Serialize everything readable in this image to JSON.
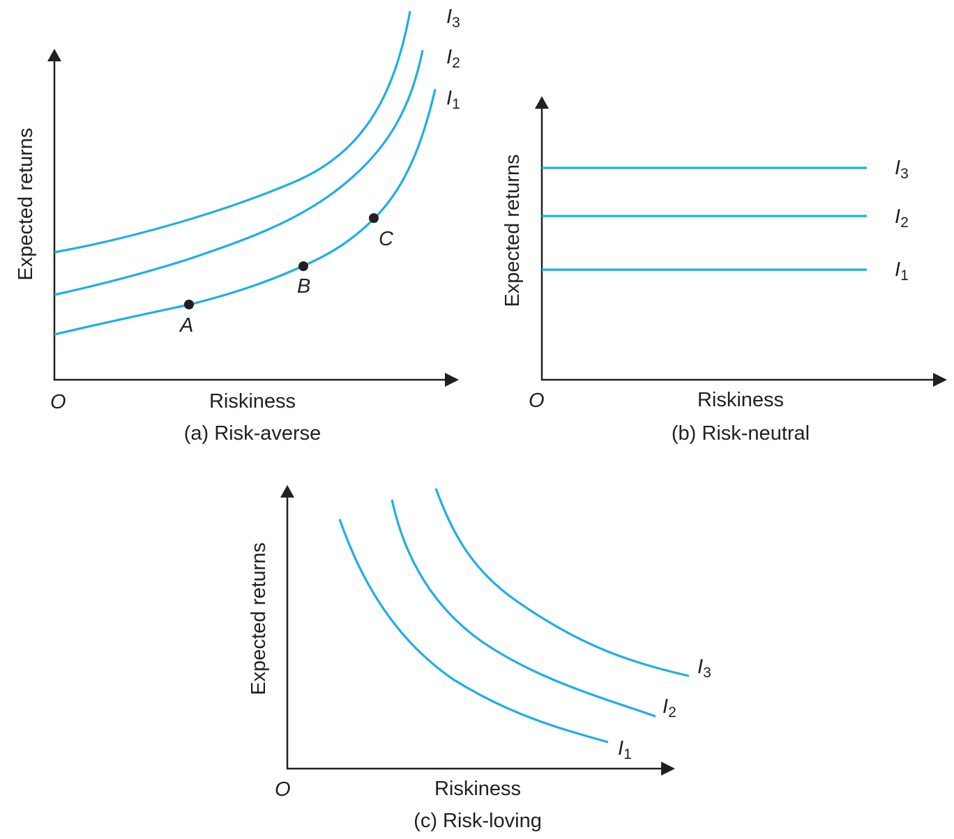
{
  "colors": {
    "curve": "#1eaee6",
    "axis": "#231f20",
    "background": "#ffffff"
  },
  "panel_a": {
    "caption": "(a) Risk-averse",
    "x_label": "Riskiness",
    "y_label": "Expected returns",
    "origin": "O",
    "curves": [
      {
        "letter": "I",
        "sub": "3"
      },
      {
        "letter": "I",
        "sub": "2"
      },
      {
        "letter": "I",
        "sub": "1"
      }
    ],
    "points": [
      {
        "label": "A"
      },
      {
        "label": "B"
      },
      {
        "label": "C"
      }
    ]
  },
  "panel_b": {
    "caption": "(b) Risk-neutral",
    "x_label": "Riskiness",
    "y_label": "Expected returns",
    "origin": "O",
    "curves": [
      {
        "letter": "I",
        "sub": "3"
      },
      {
        "letter": "I",
        "sub": "2"
      },
      {
        "letter": "I",
        "sub": "1"
      }
    ]
  },
  "panel_c": {
    "caption": "(c) Risk-loving",
    "x_label": "Riskiness",
    "y_label": "Expected returns",
    "origin": "O",
    "curves": [
      {
        "letter": "I",
        "sub": "3"
      },
      {
        "letter": "I",
        "sub": "2"
      },
      {
        "letter": "I",
        "sub": "1"
      }
    ]
  }
}
